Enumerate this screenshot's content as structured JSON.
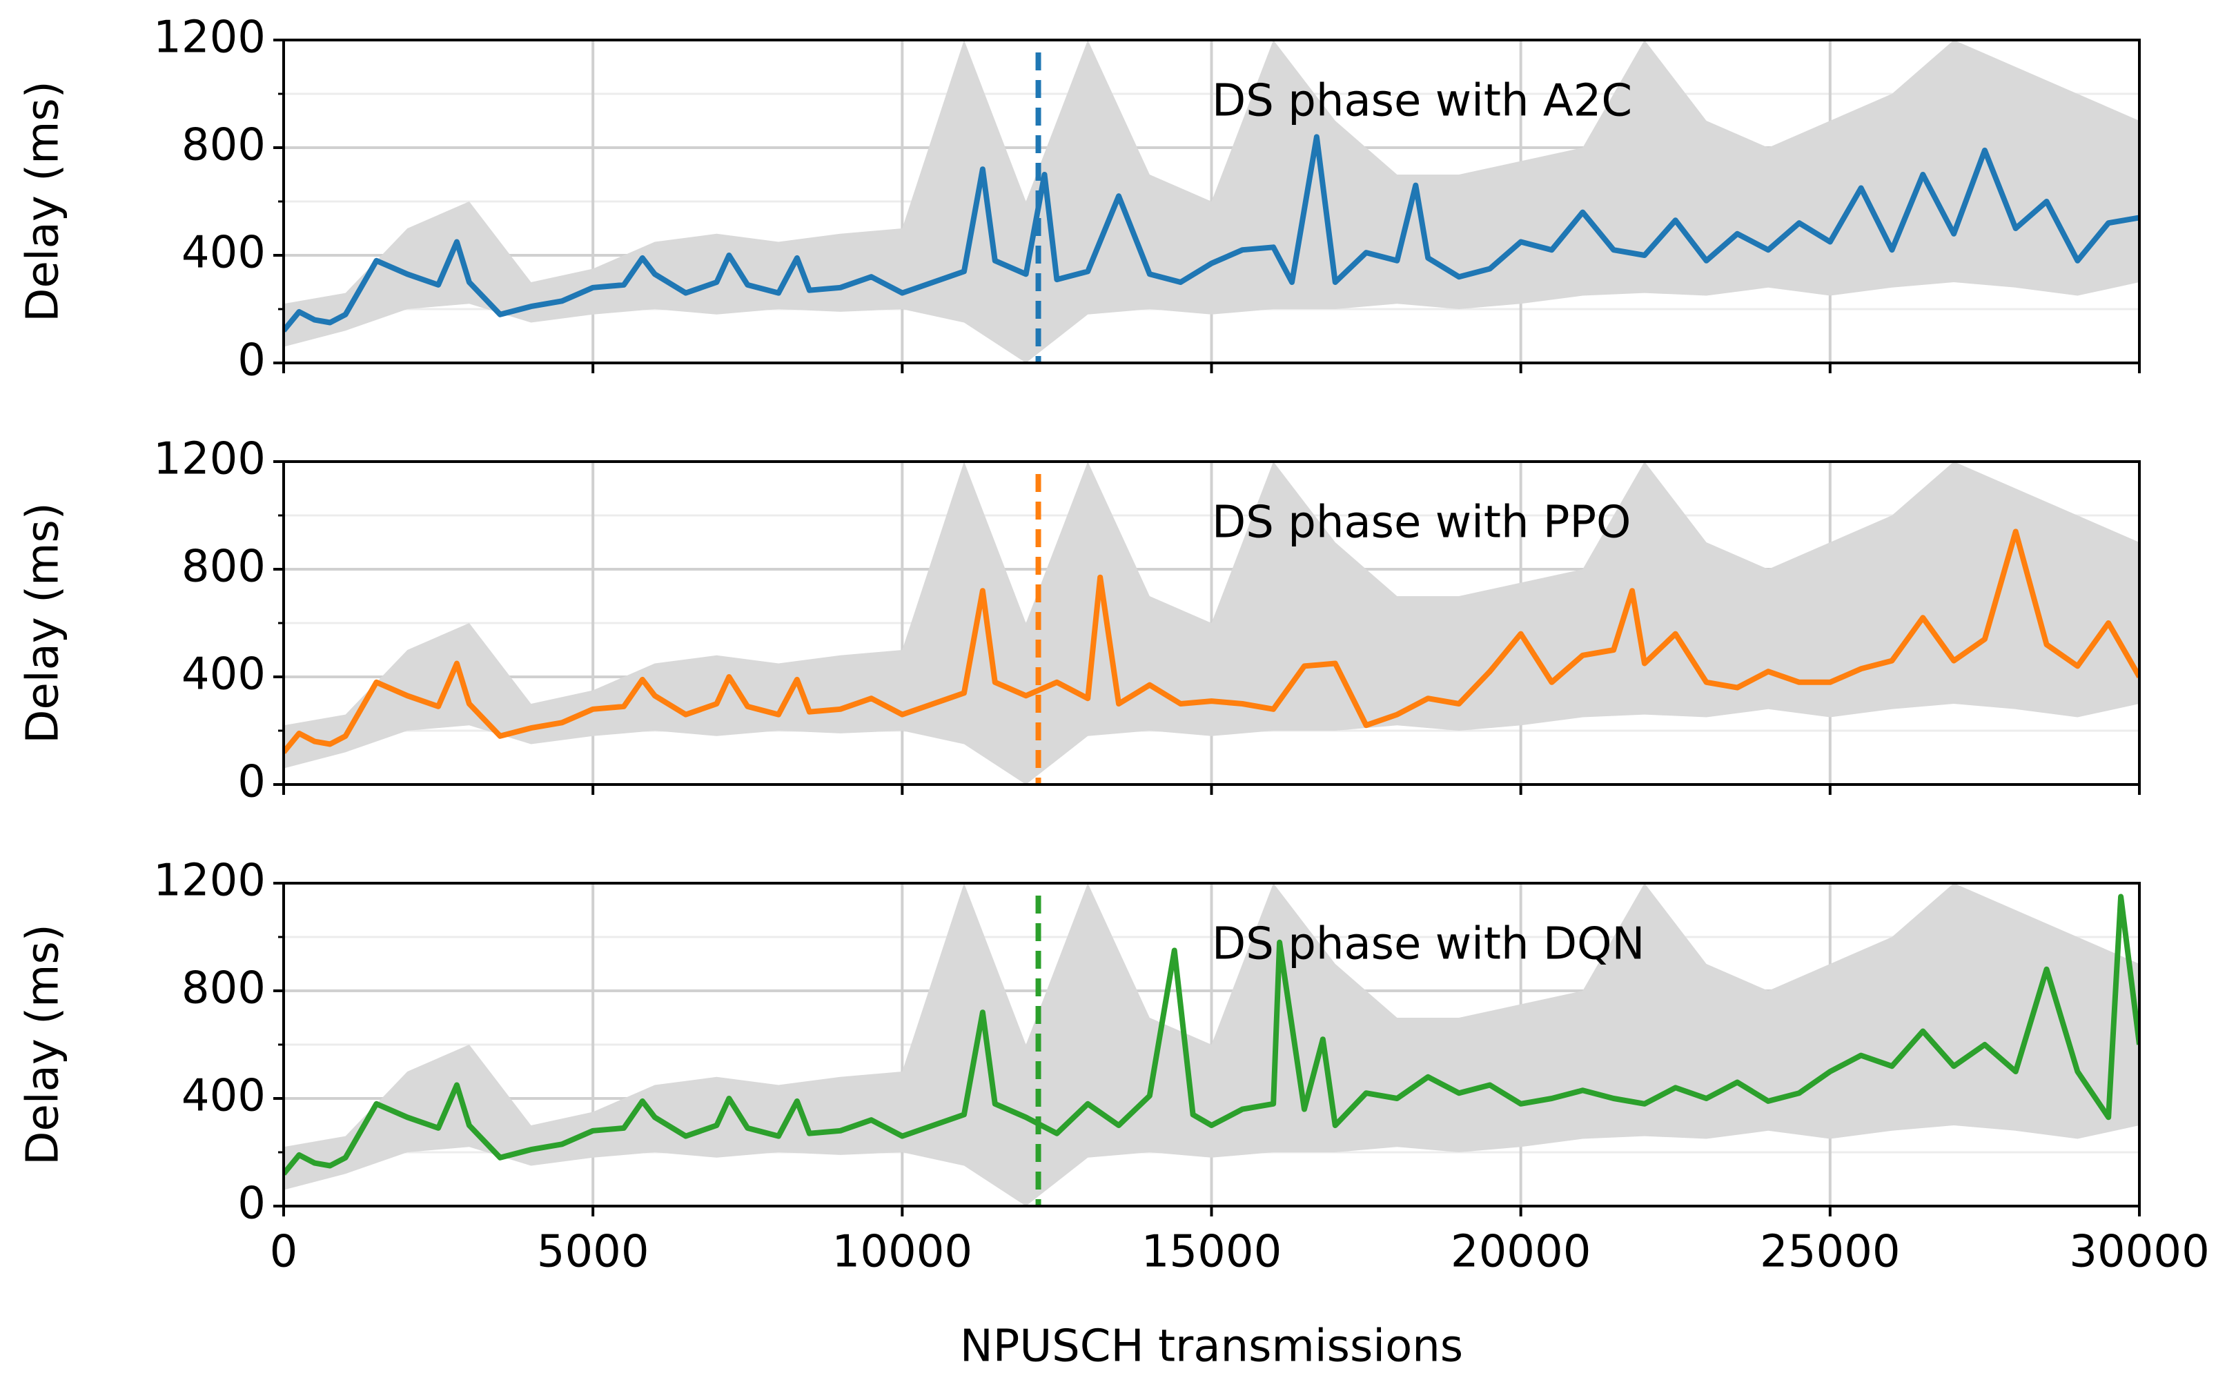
{
  "chart_data": [
    {
      "type": "line",
      "annotation": "DS phase with A2C",
      "ylabel": "Delay (ms)",
      "xlim": [
        0,
        30000
      ],
      "xticks": [
        0,
        5000,
        10000,
        15000,
        20000,
        25000,
        30000
      ],
      "ylim": [
        0,
        1200
      ],
      "yticks": [
        0,
        400,
        800,
        1200
      ],
      "yminorticks": [
        200,
        600,
        1000
      ],
      "grid": true,
      "vline": 12200,
      "band": {
        "color": "#d9d9d9",
        "x": [
          0,
          1000,
          2000,
          3000,
          4000,
          5000,
          6000,
          7000,
          8000,
          9000,
          10000,
          11000,
          12000,
          13000,
          14000,
          15000,
          16000,
          17000,
          18000,
          19000,
          20000,
          21000,
          22000,
          23000,
          24000,
          25000,
          26000,
          27000,
          28000,
          29000,
          30000
        ],
        "lower": [
          60,
          120,
          200,
          220,
          150,
          180,
          200,
          180,
          200,
          190,
          200,
          150,
          0,
          180,
          200,
          180,
          200,
          200,
          220,
          200,
          220,
          250,
          260,
          250,
          280,
          250,
          280,
          300,
          280,
          250,
          300
        ],
        "upper": [
          220,
          260,
          500,
          600,
          300,
          350,
          450,
          480,
          450,
          480,
          500,
          1200,
          600,
          1200,
          700,
          600,
          1200,
          900,
          700,
          700,
          750,
          800,
          1200,
          900,
          800,
          900,
          1000,
          1200,
          1100,
          1000,
          900
        ]
      },
      "series": [
        {
          "color": "#1f77b4",
          "x": [
            0,
            250,
            500,
            750,
            1000,
            1500,
            2000,
            2500,
            2800,
            3000,
            3500,
            4000,
            4500,
            5000,
            5500,
            5800,
            6000,
            6500,
            7000,
            7200,
            7500,
            8000,
            8300,
            8500,
            9000,
            9500,
            10000,
            10500,
            11000,
            11300,
            11500,
            12000,
            12300,
            12500,
            13000,
            13500,
            14000,
            14500,
            15000,
            15500,
            16000,
            16300,
            16700,
            17000,
            17500,
            18000,
            18300,
            18500,
            19000,
            19500,
            20000,
            20500,
            21000,
            21500,
            22000,
            22500,
            23000,
            23500,
            24000,
            24500,
            25000,
            25500,
            26000,
            26500,
            27000,
            27500,
            28000,
            28500,
            29000,
            29500,
            30000
          ],
          "values": [
            120,
            190,
            160,
            150,
            180,
            380,
            330,
            290,
            450,
            300,
            180,
            210,
            230,
            280,
            290,
            390,
            330,
            260,
            300,
            400,
            290,
            260,
            390,
            270,
            280,
            320,
            260,
            300,
            340,
            720,
            380,
            330,
            700,
            310,
            340,
            620,
            330,
            300,
            370,
            420,
            430,
            300,
            840,
            300,
            410,
            380,
            660,
            390,
            320,
            350,
            450,
            420,
            560,
            420,
            400,
            530,
            380,
            480,
            420,
            520,
            450,
            650,
            420,
            700,
            480,
            790,
            500,
            600,
            380,
            520,
            540
          ]
        }
      ]
    },
    {
      "type": "line",
      "annotation": "DS phase with PPO",
      "ylabel": "Delay (ms)",
      "xlim": [
        0,
        30000
      ],
      "xticks": [
        0,
        5000,
        10000,
        15000,
        20000,
        25000,
        30000
      ],
      "ylim": [
        0,
        1200
      ],
      "yticks": [
        0,
        400,
        800,
        1200
      ],
      "yminorticks": [
        200,
        600,
        1000
      ],
      "grid": true,
      "vline": 12200,
      "band": {
        "color": "#d9d9d9",
        "x": [
          0,
          1000,
          2000,
          3000,
          4000,
          5000,
          6000,
          7000,
          8000,
          9000,
          10000,
          11000,
          12000,
          13000,
          14000,
          15000,
          16000,
          17000,
          18000,
          19000,
          20000,
          21000,
          22000,
          23000,
          24000,
          25000,
          26000,
          27000,
          28000,
          29000,
          30000
        ],
        "lower": [
          60,
          120,
          200,
          220,
          150,
          180,
          200,
          180,
          200,
          190,
          200,
          150,
          0,
          180,
          200,
          180,
          200,
          200,
          220,
          200,
          220,
          250,
          260,
          250,
          280,
          250,
          280,
          300,
          280,
          250,
          300
        ],
        "upper": [
          220,
          260,
          500,
          600,
          300,
          350,
          450,
          480,
          450,
          480,
          500,
          1200,
          600,
          1200,
          700,
          600,
          1200,
          900,
          700,
          700,
          750,
          800,
          1200,
          900,
          800,
          900,
          1000,
          1200,
          1100,
          1000,
          900
        ]
      },
      "series": [
        {
          "color": "#ff7f0e",
          "x": [
            0,
            250,
            500,
            750,
            1000,
            1500,
            2000,
            2500,
            2800,
            3000,
            3500,
            4000,
            4500,
            5000,
            5500,
            5800,
            6000,
            6500,
            7000,
            7200,
            7500,
            8000,
            8300,
            8500,
            9000,
            9500,
            10000,
            10500,
            11000,
            11300,
            11500,
            12000,
            12500,
            13000,
            13200,
            13500,
            14000,
            14500,
            15000,
            15500,
            16000,
            16500,
            17000,
            17500,
            18000,
            18500,
            19000,
            19500,
            20000,
            20500,
            21000,
            21500,
            21800,
            22000,
            22500,
            23000,
            23500,
            24000,
            24500,
            25000,
            25500,
            26000,
            26500,
            27000,
            27500,
            28000,
            28500,
            29000,
            29500,
            30000
          ],
          "values": [
            120,
            190,
            160,
            150,
            180,
            380,
            330,
            290,
            450,
            300,
            180,
            210,
            230,
            280,
            290,
            390,
            330,
            260,
            300,
            400,
            290,
            260,
            390,
            270,
            280,
            320,
            260,
            300,
            340,
            720,
            380,
            330,
            380,
            320,
            770,
            300,
            370,
            300,
            310,
            300,
            280,
            440,
            450,
            220,
            260,
            320,
            300,
            420,
            560,
            380,
            480,
            500,
            720,
            450,
            560,
            380,
            360,
            420,
            380,
            380,
            430,
            460,
            620,
            460,
            540,
            940,
            520,
            440,
            600,
            400
          ]
        }
      ]
    },
    {
      "type": "line",
      "annotation": "DS phase with DQN",
      "ylabel": "Delay (ms)",
      "xlabel": "NPUSCH transmissions",
      "xlim": [
        0,
        30000
      ],
      "xticks": [
        0,
        5000,
        10000,
        15000,
        20000,
        25000,
        30000
      ],
      "xticklabels": true,
      "ylim": [
        0,
        1200
      ],
      "yticks": [
        0,
        400,
        800,
        1200
      ],
      "yminorticks": [
        200,
        600,
        1000
      ],
      "grid": true,
      "vline": 12200,
      "band": {
        "color": "#d9d9d9",
        "x": [
          0,
          1000,
          2000,
          3000,
          4000,
          5000,
          6000,
          7000,
          8000,
          9000,
          10000,
          11000,
          12000,
          13000,
          14000,
          15000,
          16000,
          17000,
          18000,
          19000,
          20000,
          21000,
          22000,
          23000,
          24000,
          25000,
          26000,
          27000,
          28000,
          29000,
          30000
        ],
        "lower": [
          60,
          120,
          200,
          220,
          150,
          180,
          200,
          180,
          200,
          190,
          200,
          150,
          0,
          180,
          200,
          180,
          200,
          200,
          220,
          200,
          220,
          250,
          260,
          250,
          280,
          250,
          280,
          300,
          280,
          250,
          300
        ],
        "upper": [
          220,
          260,
          500,
          600,
          300,
          350,
          450,
          480,
          450,
          480,
          500,
          1200,
          600,
          1200,
          700,
          600,
          1200,
          900,
          700,
          700,
          750,
          800,
          1200,
          900,
          800,
          900,
          1000,
          1200,
          1100,
          1000,
          900
        ]
      },
      "series": [
        {
          "color": "#2ca02c",
          "x": [
            0,
            250,
            500,
            750,
            1000,
            1500,
            2000,
            2500,
            2800,
            3000,
            3500,
            4000,
            4500,
            5000,
            5500,
            5800,
            6000,
            6500,
            7000,
            7200,
            7500,
            8000,
            8300,
            8500,
            9000,
            9500,
            10000,
            10500,
            11000,
            11300,
            11500,
            12000,
            12500,
            13000,
            13500,
            14000,
            14400,
            14700,
            15000,
            15500,
            16000,
            16100,
            16500,
            16800,
            17000,
            17500,
            18000,
            18500,
            19000,
            19500,
            20000,
            20500,
            21000,
            21500,
            22000,
            22500,
            23000,
            23500,
            24000,
            24500,
            25000,
            25500,
            26000,
            26500,
            27000,
            27500,
            28000,
            28500,
            29000,
            29500,
            29700,
            30000
          ],
          "values": [
            120,
            190,
            160,
            150,
            180,
            380,
            330,
            290,
            450,
            300,
            180,
            210,
            230,
            280,
            290,
            390,
            330,
            260,
            300,
            400,
            290,
            260,
            390,
            270,
            280,
            320,
            260,
            300,
            340,
            720,
            380,
            330,
            270,
            380,
            300,
            410,
            950,
            340,
            300,
            360,
            380,
            980,
            360,
            620,
            300,
            420,
            400,
            480,
            420,
            450,
            380,
            400,
            430,
            400,
            380,
            440,
            400,
            460,
            390,
            420,
            500,
            560,
            520,
            650,
            520,
            600,
            500,
            880,
            500,
            330,
            1150,
            600
          ]
        }
      ]
    }
  ]
}
